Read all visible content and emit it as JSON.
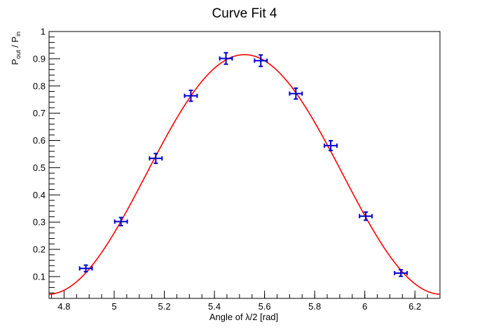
{
  "chart_data": {
    "type": "scatter",
    "title": "Curve Fit 4",
    "xlabel": "Angle of λ/2 [rad]",
    "ylabel": {
      "p1": "P",
      "sub1": "out",
      "sep": " / P",
      "sub2": "in"
    },
    "xlim": [
      4.74,
      6.3
    ],
    "ylim": [
      0.02,
      1.0
    ],
    "x_ticks": [
      "4.8",
      "5",
      "5.2",
      "5.4",
      "5.6",
      "5.8",
      "6",
      "6.2"
    ],
    "y_ticks": [
      "0.1",
      "0.2",
      "0.3",
      "0.4",
      "0.5",
      "0.6",
      "0.7",
      "0.8",
      "0.9",
      "1"
    ],
    "grid": false,
    "series": [
      {
        "points": [
          {
            "x": 4.887,
            "y": 0.13,
            "xerr": 0.025,
            "yerr": 0.012
          },
          {
            "x": 5.027,
            "y": 0.302,
            "xerr": 0.025,
            "yerr": 0.015
          },
          {
            "x": 5.166,
            "y": 0.534,
            "xerr": 0.025,
            "yerr": 0.018
          },
          {
            "x": 5.306,
            "y": 0.764,
            "xerr": 0.025,
            "yerr": 0.02
          },
          {
            "x": 5.446,
            "y": 0.901,
            "xerr": 0.025,
            "yerr": 0.021
          },
          {
            "x": 5.585,
            "y": 0.893,
            "xerr": 0.025,
            "yerr": 0.021
          },
          {
            "x": 5.725,
            "y": 0.772,
            "xerr": 0.025,
            "yerr": 0.02
          },
          {
            "x": 5.864,
            "y": 0.581,
            "xerr": 0.025,
            "yerr": 0.018
          },
          {
            "x": 6.004,
            "y": 0.322,
            "xerr": 0.025,
            "yerr": 0.015
          },
          {
            "x": 6.144,
            "y": 0.113,
            "xerr": 0.025,
            "yerr": 0.012
          }
        ],
        "color": "#0000cc"
      }
    ],
    "fit": {
      "color": "#ff0000",
      "amplitude": 0.44,
      "offset": 0.475,
      "frequency": 4.0,
      "phase": 5.52
    }
  }
}
